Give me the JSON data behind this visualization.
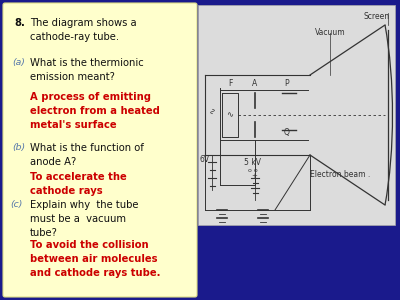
{
  "bg_color": "#1a1a8c",
  "left_panel_color": "#ffffcc",
  "right_panel_color": "#dcdcdc",
  "answer_text_color": "#cc0000",
  "question_text_color": "#111111",
  "sub_label_color": "#5577aa",
  "diagram_line_color": "#333333",
  "question_num": "8.",
  "q_main": "The diagram shows a\ncathode-ray tube.",
  "qa_label": "(a)",
  "qa_text": "What is the thermionic\nemission meant?",
  "qa_answer": "A process of emitting\nelectron from a heated\nmetal's surface",
  "qb_label": "(b)",
  "qb_text": "What is the function of\nanode A?",
  "qb_answer": "To accelerate the\ncathode rays",
  "qc_label": "(c)",
  "qc_text": "Explain why  the tube\nmust be a  vacuum\ntube?",
  "qc_answer": "To avoid the collision\nbetween air molecules\nand cathode rays tube."
}
